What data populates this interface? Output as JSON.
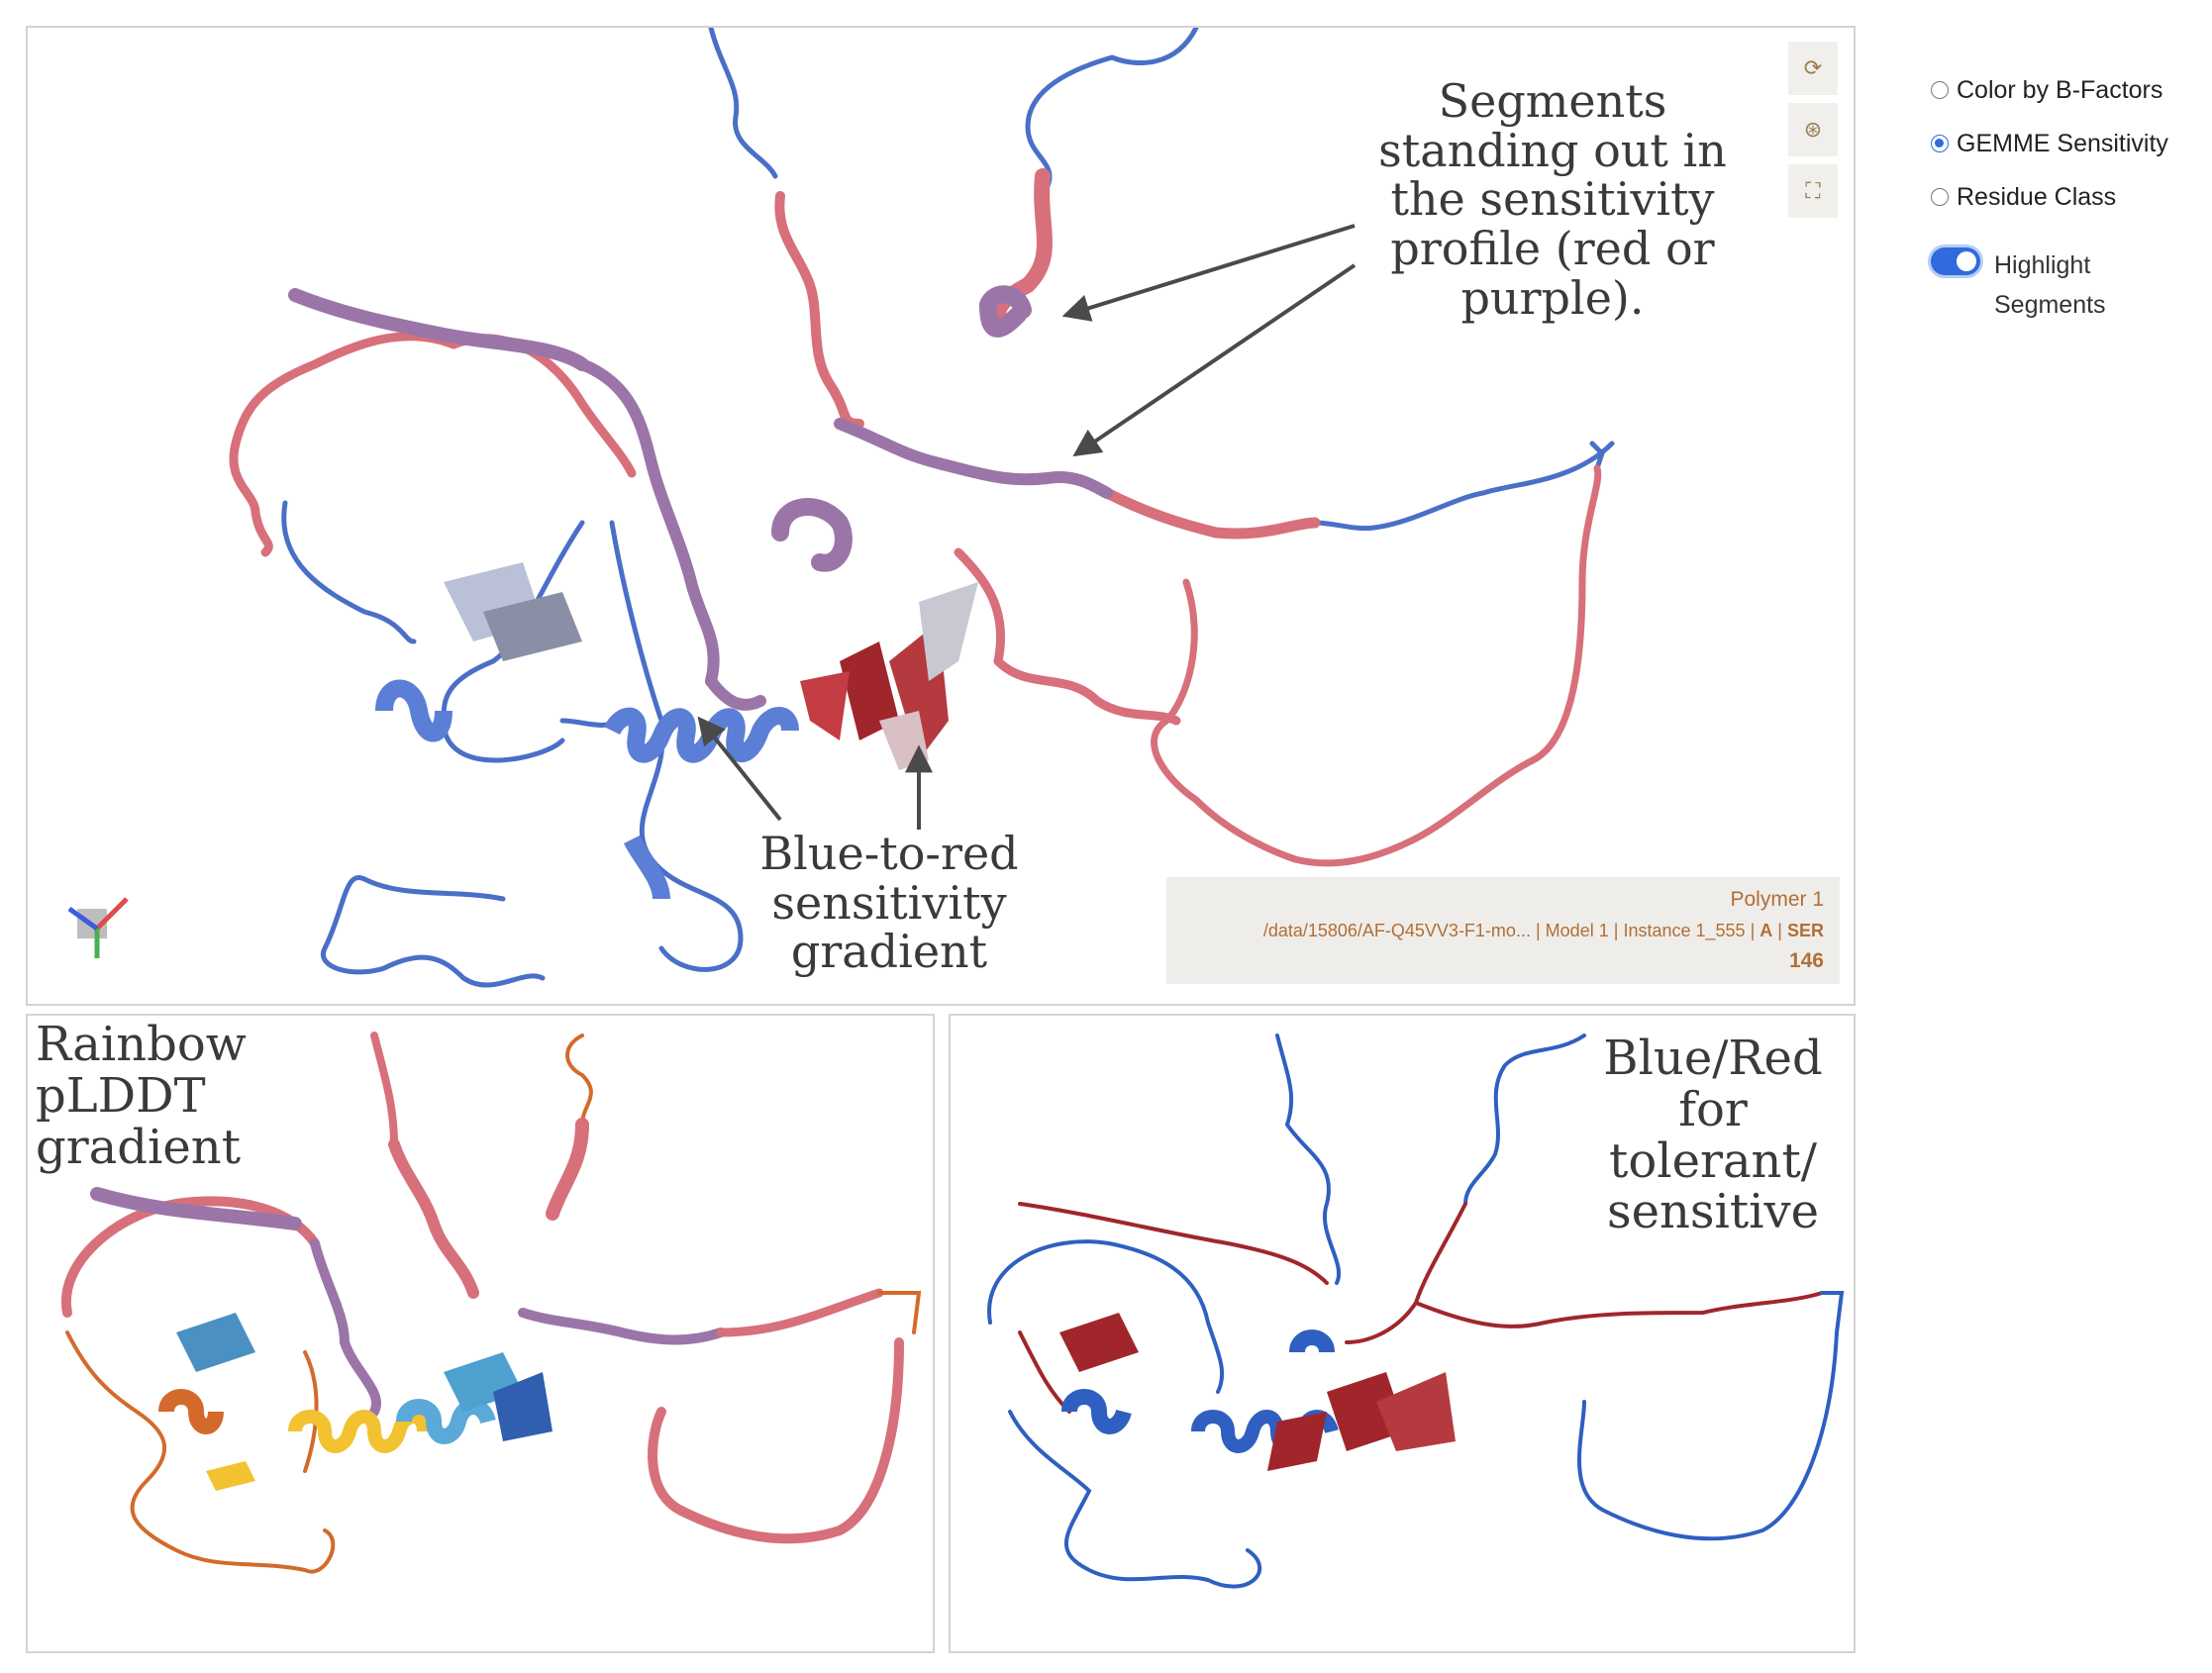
{
  "main_viewer": {
    "annotation_top": "Segments standing out in the sensitivity profile (red or purple).",
    "annotation_bottom": "Blue-to-red sensitivity gradient",
    "controls": [
      {
        "name": "reset-camera",
        "icon": "refresh-icon",
        "glyph": "⟳"
      },
      {
        "name": "screenshot",
        "icon": "aperture-icon",
        "glyph": "⊛"
      },
      {
        "name": "fullscreen",
        "icon": "expand-icon",
        "glyph": "⛶"
      }
    ],
    "info": {
      "title": "Polymer 1",
      "path": "/data/15806/AF-Q45VV3-F1-mo...",
      "sep": "|",
      "model": "Model 1",
      "instance": "Instance 1_555",
      "chain": "A",
      "residue": "SER",
      "residue_number": "146"
    }
  },
  "rainbow_viewer": {
    "annotation": "Rainbow pLDDT gradient"
  },
  "bluered_viewer": {
    "annotation": "Blue/Red for tolerant/ sensitive"
  },
  "options": {
    "color_modes": [
      {
        "label": "Color by B-Factors",
        "selected": false
      },
      {
        "label": "GEMME Sensitivity",
        "selected": true
      },
      {
        "label": "Residue Class",
        "selected": false
      }
    ],
    "highlight_label": "Highlight",
    "highlight_label2": "Segments",
    "highlight_on": true
  },
  "colors": {
    "blue": "#4a6fc7",
    "red": "#d7707a",
    "purple": "#9b75a8",
    "dark_red": "#a0262b",
    "accent": "#2f6bdc",
    "info_text": "#b06f35"
  }
}
